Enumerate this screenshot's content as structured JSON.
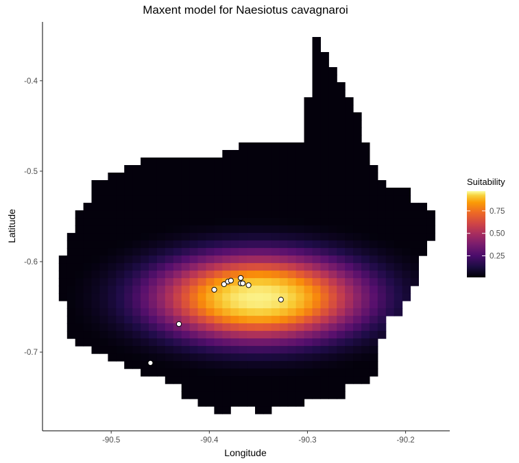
{
  "chart_data": {
    "type": "heatmap",
    "title": "Maxent model for Naesiotus cavagnaroi",
    "xlabel": "Longitude",
    "ylabel": "Latitude",
    "xlim": [
      -90.57,
      -90.155
    ],
    "ylim": [
      -0.787,
      -0.335
    ],
    "x_ticks": [
      {
        "value": -90.5,
        "label": "-90.5"
      },
      {
        "value": -90.4,
        "label": "-90.4"
      },
      {
        "value": -90.3,
        "label": "-90.3"
      },
      {
        "value": -90.2,
        "label": "-90.2"
      }
    ],
    "y_ticks": [
      {
        "value": -0.4,
        "label": "-0.4"
      },
      {
        "value": -0.5,
        "label": "-0.5"
      },
      {
        "value": -0.6,
        "label": "-0.6"
      },
      {
        "value": -0.7,
        "label": "-0.7"
      }
    ],
    "grid": false,
    "raster": {
      "cell_size": 0.00833,
      "fill_description": "continuous suitability surface, approx. 0 at island edges rising to ~0.97 near (-90.35, -0.64)",
      "peak": {
        "lon": -90.35,
        "lat": -0.64,
        "value": 0.97
      },
      "value_range": [
        0,
        1
      ]
    },
    "occurrence_points": [
      {
        "lon": -90.395,
        "lat": -0.631
      },
      {
        "lon": -90.385,
        "lat": -0.625
      },
      {
        "lon": -90.381,
        "lat": -0.622
      },
      {
        "lon": -90.378,
        "lat": -0.621
      },
      {
        "lon": -90.368,
        "lat": -0.618
      },
      {
        "lon": -90.368,
        "lat": -0.624
      },
      {
        "lon": -90.366,
        "lat": -0.624
      },
      {
        "lon": -90.36,
        "lat": -0.626
      },
      {
        "lon": -90.327,
        "lat": -0.642
      },
      {
        "lon": -90.431,
        "lat": -0.669
      },
      {
        "lon": -90.46,
        "lat": -0.712
      }
    ],
    "legend": {
      "title": "Suitability",
      "placement": "right",
      "ticks": [
        {
          "value": 0.75,
          "label": "0.75"
        },
        {
          "value": 0.5,
          "label": "0.50"
        },
        {
          "value": 0.25,
          "label": "0.25"
        }
      ],
      "range": [
        0.01,
        0.97
      ],
      "colormap": "inferno"
    }
  }
}
